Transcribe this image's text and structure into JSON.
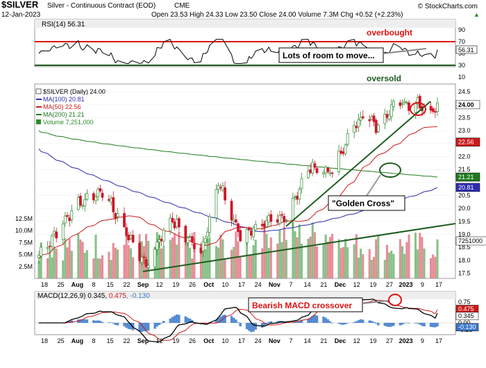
{
  "header": {
    "symbol": "$SILVER",
    "name": "Silver - Continuous Contract (EOD)",
    "exchange": "CME",
    "copyright": "© StockCharts.com",
    "date": "12-Jan-2023",
    "ohlc": "Open 23.53  High 24.33  Low 23.50  Close 24.00  Volume 7.3M  Chg +0.52 (+2.23%)",
    "chg_arrow": "▲"
  },
  "colors": {
    "up": "#2e8b2e",
    "down": "#d0162a",
    "ma100": "#2c2cb0",
    "ma50": "#cc1a1a",
    "ma200": "#1f7a1f",
    "volume_up": "#6ab26a",
    "volume_down": "#e0707c",
    "rsi_line": "#000000",
    "overbought_line": "#e01010",
    "oversold_line": "#1f5c1f",
    "annotation_red": "#e01010",
    "annotation_green": "#1f5c1f",
    "panel_band": "#e8e8e8",
    "macd_hist": "#3b79c9"
  },
  "rsi_panel": {
    "label": "RSI(14) 56.31",
    "overbought_label": "overbought",
    "oversold_label": "oversold",
    "callout": "Lots of room to move...",
    "last_value": "56.31",
    "ticks": [
      "90",
      "70",
      "50",
      "30",
      "10"
    ]
  },
  "price_panel": {
    "legend": [
      {
        "text": "$SILVER (Daily) 24.00",
        "color": "#000000",
        "swatch": "none"
      },
      {
        "text": "MA(100) 20.81",
        "color": "#2c2cb0",
        "swatch": "line"
      },
      {
        "text": "MA(50) 22.56",
        "color": "#cc1a1a",
        "swatch": "line"
      },
      {
        "text": "MA(200) 21.21",
        "color": "#1f7a1f",
        "swatch": "line"
      },
      {
        "text": "Volume 7,251,000",
        "color": "#2e8b2e",
        "swatch": "box"
      }
    ],
    "callout_golden_cross": "\"Golden Cross\"",
    "price_ticks": [
      "24.5",
      "24.0",
      "23.5",
      "23.0",
      "22.5",
      "22.0",
      "21.5",
      "21.0",
      "20.5",
      "20.0",
      "19.5",
      "19.0",
      "18.5",
      "18.0",
      "17.5"
    ],
    "volume_ticks": [
      "12.5M",
      "10.0M",
      "7.5M",
      "5.0M",
      "2.5M"
    ],
    "value_tags": [
      {
        "text": "24.00",
        "bg": "#ffffff",
        "fg": "#000000",
        "bold": true
      },
      {
        "text": "22.56",
        "bg": "#cc1a1a",
        "fg": "#ffffff"
      },
      {
        "text": "21.21",
        "bg": "#1f7a1f",
        "fg": "#ffffff"
      },
      {
        "text": "20.81",
        "bg": "#2c2cb0",
        "fg": "#ffffff"
      },
      {
        "text": "7251000",
        "bg": "#ffffff",
        "fg": "#000000"
      }
    ]
  },
  "macd_panel": {
    "label_prefix": "MACD(12,26,9) 0.345, ",
    "label_signal": "0.475",
    "label_hist": ", -0.130",
    "callout": "Bearish MACD crossover",
    "ticks": [
      "0.75",
      "0.50",
      "0.25",
      "0.00",
      "-0.25"
    ],
    "tags": [
      {
        "text": "0.475",
        "bg": "#cc1a1a",
        "fg": "#ffffff"
      },
      {
        "text": "0.345",
        "bg": "#ffffff",
        "fg": "#000000"
      },
      {
        "text": "-0.130",
        "bg": "#3b79c9",
        "fg": "#ffffff"
      }
    ]
  },
  "x_axis_labels": [
    "18",
    "25",
    "Aug",
    "8",
    "15",
    "22",
    "Sep",
    "12",
    "19",
    "26",
    "Oct",
    "10",
    "17",
    "24",
    "Nov",
    "7",
    "14",
    "21",
    "Dec",
    "12",
    "19",
    "27",
    "2023",
    "9",
    "17"
  ],
  "chart_data": [
    {
      "type": "candlestick",
      "title": "$SILVER (Daily) 24.00",
      "x_start": "2022-07-14",
      "x_end": "2023-01-12",
      "ylim": [
        17.3,
        24.8
      ],
      "series": [
        {
          "name": "MA(100)",
          "last": 20.81
        },
        {
          "name": "MA(50)",
          "last": 22.56
        },
        {
          "name": "MA(200)",
          "last": 21.21
        },
        {
          "name": "Volume",
          "last": 7251000
        }
      ],
      "approx_path": [
        {
          "date": "2022-07-14",
          "close": 18.2
        },
        {
          "date": "2022-08-01",
          "close": 20.2
        },
        {
          "date": "2022-08-12",
          "close": 20.7
        },
        {
          "date": "2022-08-22",
          "close": 19.2
        },
        {
          "date": "2022-09-01",
          "close": 17.8
        },
        {
          "date": "2022-09-12",
          "close": 19.6
        },
        {
          "date": "2022-09-26",
          "close": 18.3
        },
        {
          "date": "2022-10-04",
          "close": 21.0
        },
        {
          "date": "2022-10-14",
          "close": 18.9
        },
        {
          "date": "2022-10-21",
          "close": 19.3
        },
        {
          "date": "2022-11-03",
          "close": 19.6
        },
        {
          "date": "2022-11-15",
          "close": 21.6
        },
        {
          "date": "2022-11-25",
          "close": 21.4
        },
        {
          "date": "2022-12-05",
          "close": 23.2
        },
        {
          "date": "2022-12-09",
          "close": 23.6
        },
        {
          "date": "2022-12-16",
          "close": 23.1
        },
        {
          "date": "2022-12-22",
          "close": 24.0
        },
        {
          "date": "2023-01-03",
          "close": 24.1
        },
        {
          "date": "2023-01-09",
          "close": 23.7
        },
        {
          "date": "2023-01-12",
          "close": 24.0
        }
      ]
    },
    {
      "type": "line",
      "title": "RSI(14) 56.31",
      "ylim": [
        10,
        90
      ],
      "reference_lines": [
        70,
        30
      ],
      "last": 56.31
    },
    {
      "type": "line",
      "title": "MACD(12,26,9) 0.345, 0.475, -0.130",
      "ylim": [
        -0.3,
        0.85
      ],
      "series": [
        {
          "name": "MACD",
          "last": 0.345
        },
        {
          "name": "Signal",
          "last": 0.475
        },
        {
          "name": "Histogram",
          "last": -0.13
        }
      ]
    }
  ]
}
